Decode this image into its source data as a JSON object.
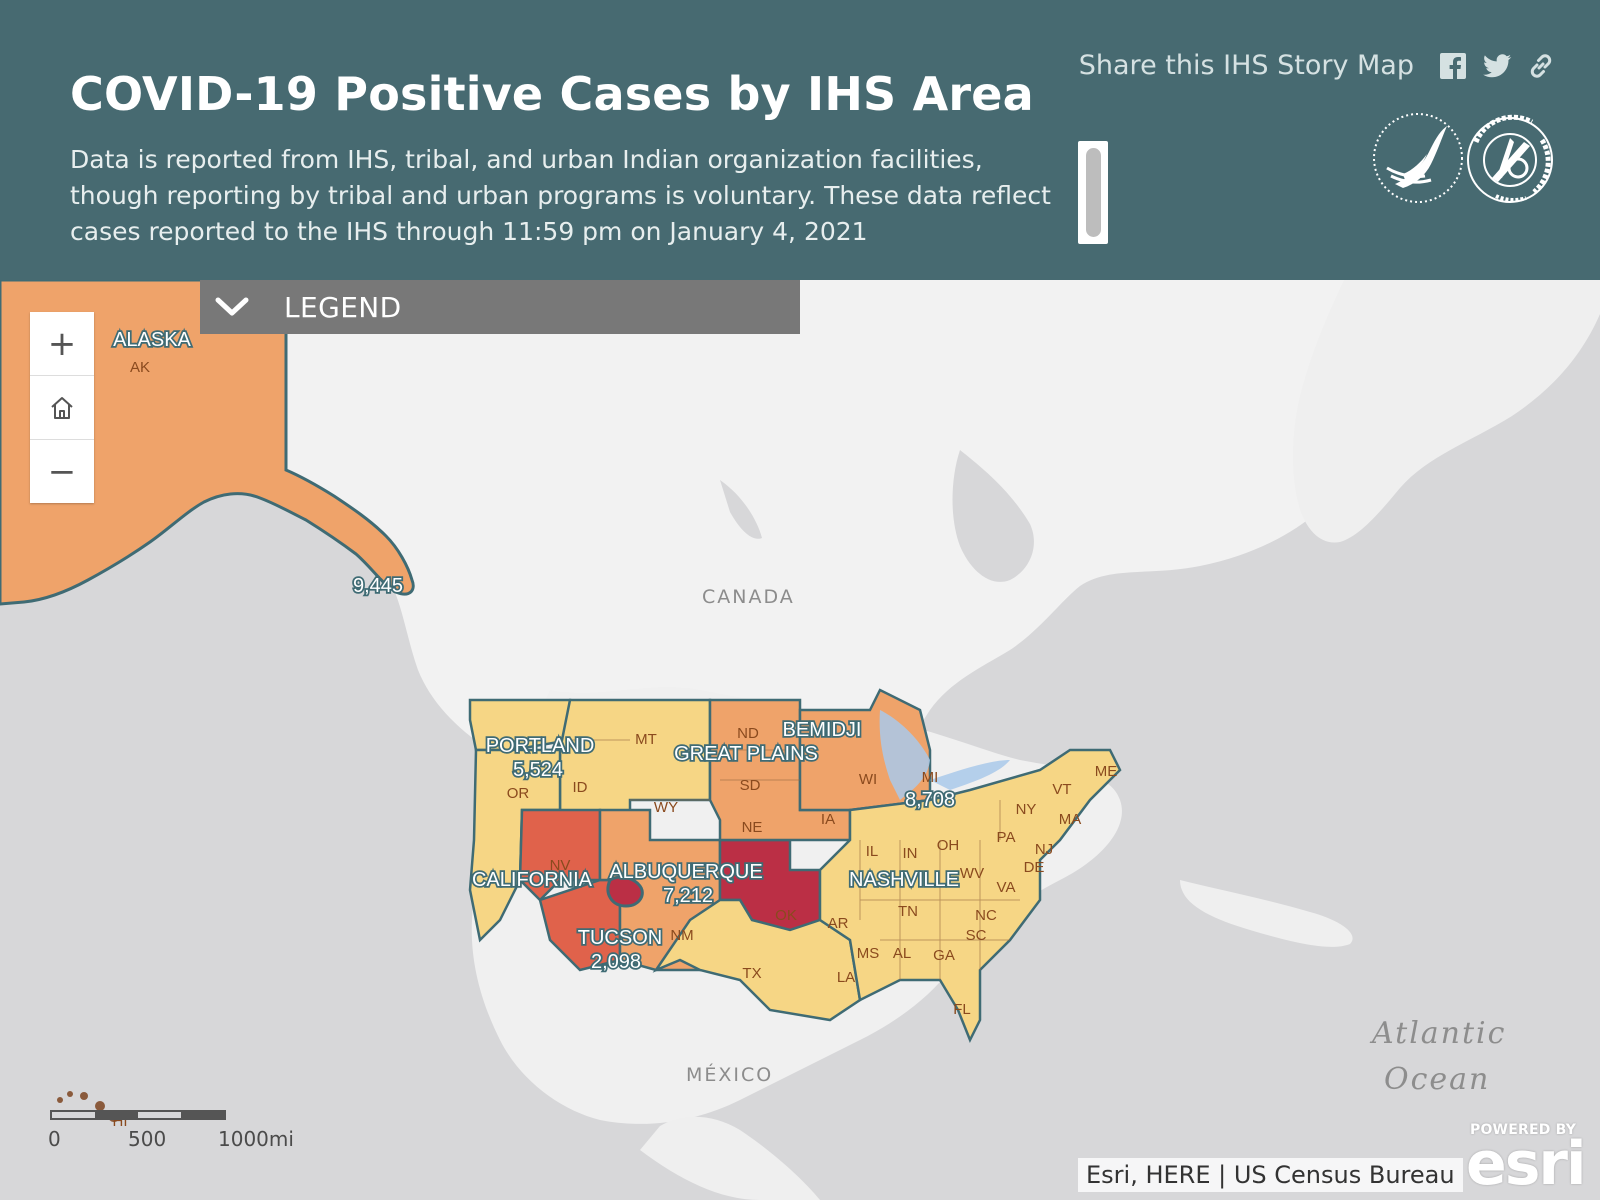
{
  "header": {
    "title": "COVID-19 Positive Cases by IHS Area",
    "subtitle": "Data is reported from IHS, tribal, and urban Indian organization facilities, though reporting by tribal and urban programs is voluntary. These data reflect cases reported to the IHS through 11:59 pm on January 4, 2021",
    "share_label": "Share this IHS Story Map",
    "share_icons": [
      "facebook-icon",
      "twitter-icon",
      "link-icon"
    ]
  },
  "legend": {
    "label": "LEGEND"
  },
  "zoom_controls": {
    "zoom_in": "+",
    "home": "home-icon",
    "zoom_out": "−"
  },
  "scale_bar": {
    "labels": [
      "0",
      "500",
      "1000mi"
    ]
  },
  "attribution": "Esri, HERE | US Census Bureau",
  "esri": {
    "powered_by": "POWERED BY",
    "brand": "esri"
  },
  "basemap_labels": {
    "canada": "CANADA",
    "mexico": "MÉXICO",
    "ocean_line1": "Atlantic",
    "ocean_line2": "Ocean"
  },
  "area_labels": {
    "alaska": "ALASKA",
    "portland": "PORTLAND",
    "california": "CALIFORNIA",
    "albuquerque": "ALBUQUERQUE",
    "tucson": "TUCSON",
    "nashville": "NASHVILLE",
    "great_plains": "GREAT PLAINS",
    "bemidji": "BEMIDJI"
  },
  "case_counts": {
    "alaska": "9,445",
    "portland": "5,524",
    "albuquerque": "7,212",
    "tucson": "2,098",
    "bemidji": "8,708"
  },
  "state_labels": [
    "AK",
    "OR",
    "ID",
    "MT",
    "WY",
    "NV",
    "NM",
    "TX",
    "OK",
    "ND",
    "SD",
    "NE",
    "IA",
    "WI",
    "MI",
    "IL",
    "IN",
    "OH",
    "PA",
    "NY",
    "VT",
    "ME",
    "MA",
    "NJ",
    "DE",
    "WV",
    "VA",
    "NC",
    "SC",
    "GA",
    "AL",
    "MS",
    "TN",
    "AR",
    "LA",
    "FL",
    "HI"
  ],
  "colors": {
    "header_bg": "#476a71",
    "light_yellow": "#f6d685",
    "orange": "#efa36a",
    "red_orange": "#e0624b",
    "crimson": "#bb2f45",
    "area_border": "#3f6b74"
  }
}
